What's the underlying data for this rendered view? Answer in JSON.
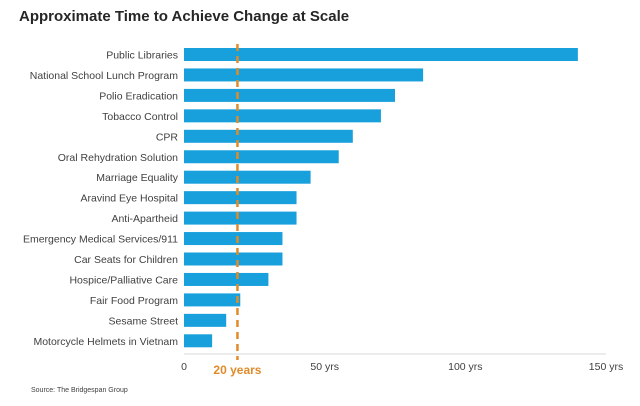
{
  "title": "Approximate Time to Achieve Change at Scale",
  "source": "Source: The Bridgespan Group",
  "chart_data": {
    "type": "bar",
    "orientation": "horizontal",
    "title": "Approximate Time to Achieve Change at Scale",
    "categories": [
      "Public Libraries",
      "National School Lunch Program",
      "Polio Eradication",
      "Tobacco Control",
      "CPR",
      "Oral Rehydration Solution",
      "Marriage Equality",
      "Aravind Eye Hospital",
      "Anti-Apartheid",
      "Emergency Medical Services/911",
      "Car Seats for Children",
      "Hospice/Palliative Care",
      "Fair Food Program",
      "Sesame Street",
      "Motorcycle Helmets in Vietnam"
    ],
    "values": [
      140,
      85,
      75,
      70,
      60,
      55,
      45,
      40,
      40,
      35,
      35,
      30,
      20,
      15,
      10
    ],
    "xlim": [
      0,
      150
    ],
    "xticks": [
      0,
      50,
      100,
      150
    ],
    "xtick_labels": [
      "0",
      "50 yrs",
      "100 yrs",
      "150 yrs"
    ],
    "grid": false,
    "bar_color": "#18A0DC",
    "reference_line": {
      "value": 19,
      "label": "20 years",
      "color": "#E08B2A",
      "style": "dashed"
    }
  }
}
